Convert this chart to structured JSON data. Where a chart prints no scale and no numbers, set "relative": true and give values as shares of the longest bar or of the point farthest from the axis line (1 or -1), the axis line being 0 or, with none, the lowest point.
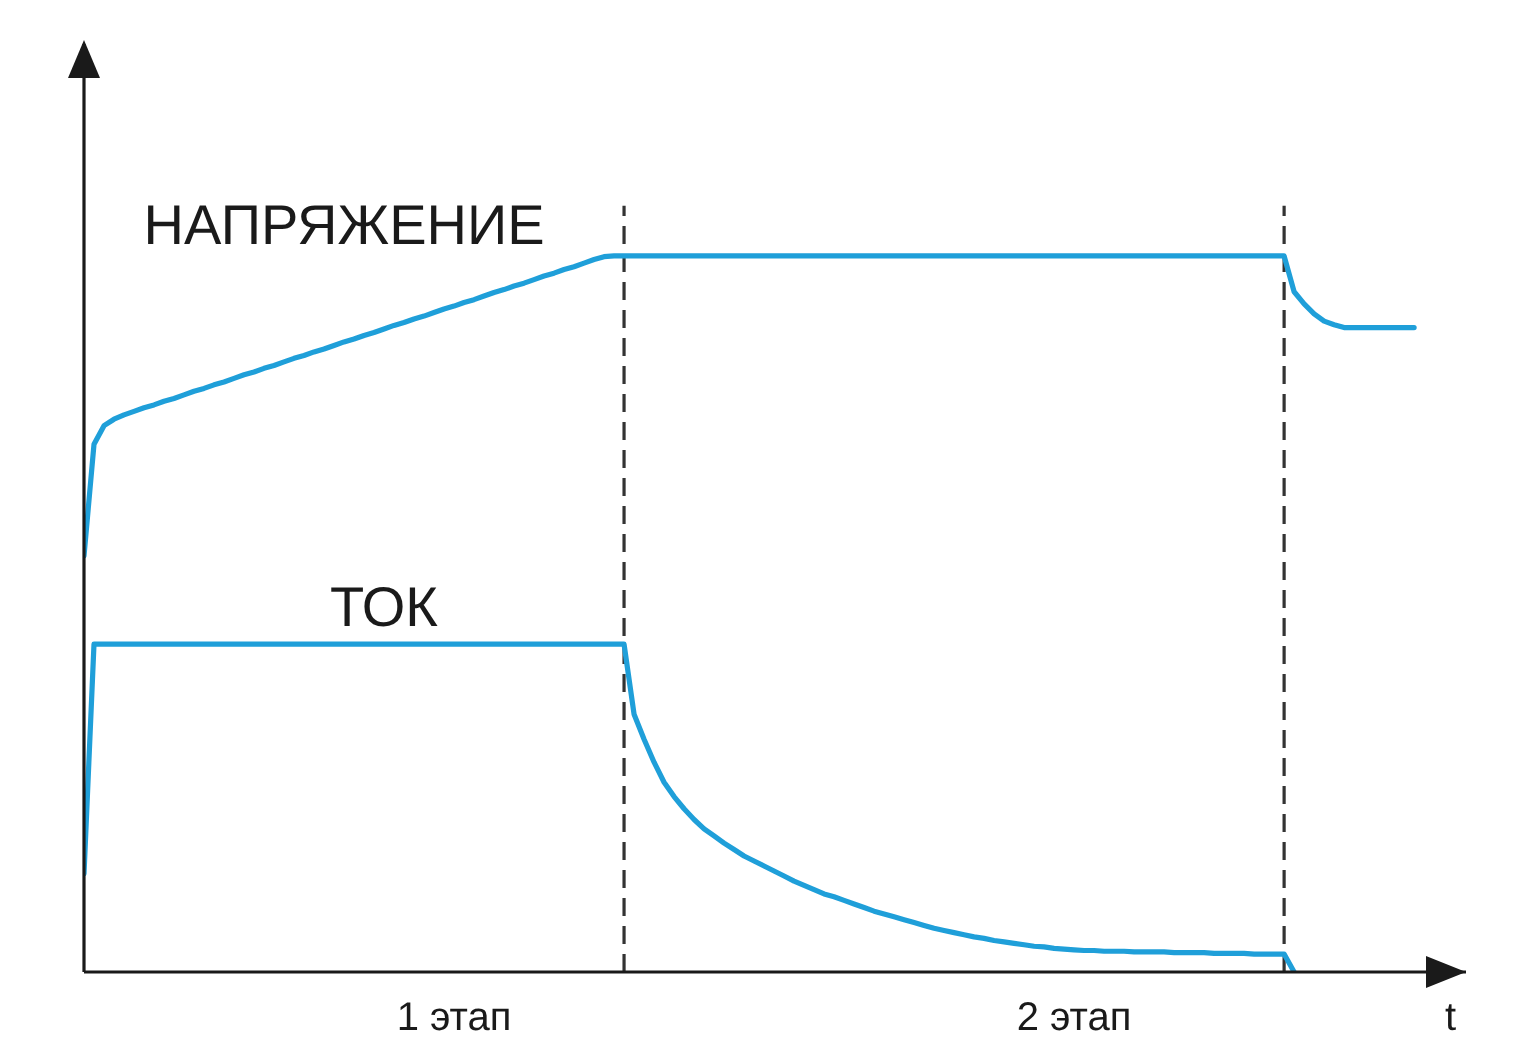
{
  "chart_data": {
    "type": "line",
    "relative": true,
    "xlabel": "t",
    "marker": "none",
    "categories": [
      null,
      null,
      null,
      null,
      null,
      null,
      null,
      null,
      null,
      null,
      null,
      null,
      null,
      null,
      null,
      null,
      null,
      null,
      null,
      null,
      null,
      null,
      null,
      null,
      null,
      null,
      null,
      null,
      null,
      null,
      null,
      null,
      null,
      null,
      null,
      null,
      null,
      "1 этап",
      null,
      null,
      null,
      null,
      null,
      null,
      null,
      null,
      null,
      null,
      null,
      null,
      null,
      null,
      null,
      null,
      null,
      null,
      null,
      null,
      null,
      null,
      null,
      null,
      null,
      null,
      null,
      null,
      null,
      null,
      null,
      null,
      null,
      null,
      null,
      null,
      null,
      null,
      null,
      null,
      null,
      null,
      null,
      null,
      null,
      null,
      null,
      null,
      null,
      null,
      null,
      null,
      null,
      null,
      null,
      null,
      null,
      null,
      null,
      null,
      null,
      "2 этап",
      null,
      null,
      null,
      null,
      null,
      null,
      null,
      null,
      null,
      null,
      null,
      null,
      null,
      null,
      null,
      null,
      null,
      null,
      null,
      null,
      null,
      null,
      null,
      null,
      null,
      null,
      null,
      null,
      null,
      null,
      null,
      null,
      null,
      null
    ],
    "series": [
      {
        "name": "НАПРЯЖЕНИЕ",
        "color": "#1f9fd9",
        "values": [
          0.581,
          0.737,
          0.763,
          0.772,
          0.778,
          0.783,
          0.788,
          0.792,
          0.797,
          0.801,
          0.806,
          0.811,
          0.815,
          0.82,
          0.824,
          0.829,
          0.834,
          0.838,
          0.843,
          0.847,
          0.852,
          0.857,
          0.861,
          0.866,
          0.87,
          0.875,
          0.88,
          0.884,
          0.889,
          0.893,
          0.898,
          0.903,
          0.907,
          0.912,
          0.916,
          0.921,
          0.926,
          0.93,
          0.935,
          0.939,
          0.944,
          0.949,
          0.953,
          0.958,
          0.962,
          0.967,
          0.972,
          0.976,
          0.981,
          0.985,
          0.99,
          0.995,
          0.999,
          1,
          1,
          1,
          1,
          1,
          1,
          1,
          1,
          1,
          1,
          1,
          1,
          1,
          1,
          1,
          1,
          1,
          1,
          1,
          1,
          1,
          1,
          1,
          1,
          1,
          1,
          1,
          1,
          1,
          1,
          1,
          1,
          1,
          1,
          1,
          1,
          1,
          1,
          1,
          1,
          1,
          1,
          1,
          1,
          1,
          1,
          1,
          1,
          1,
          1,
          1,
          1,
          1,
          1,
          1,
          1,
          1,
          1,
          1,
          1,
          1,
          1,
          1,
          1,
          1,
          1,
          1,
          1,
          0.95,
          0.933,
          0.919,
          0.909,
          0.904,
          0.9,
          0.9,
          0.9,
          0.9,
          0.9,
          0.9,
          0.9,
          0.9
        ]
      },
      {
        "name": "ТОК",
        "color": "#1f9fd9",
        "values": [
          0.137,
          0.458,
          0.458,
          0.458,
          0.458,
          0.458,
          0.458,
          0.458,
          0.458,
          0.458,
          0.458,
          0.458,
          0.458,
          0.458,
          0.458,
          0.458,
          0.458,
          0.458,
          0.458,
          0.458,
          0.458,
          0.458,
          0.458,
          0.458,
          0.458,
          0.458,
          0.458,
          0.458,
          0.458,
          0.458,
          0.458,
          0.458,
          0.458,
          0.458,
          0.458,
          0.458,
          0.458,
          0.458,
          0.458,
          0.458,
          0.458,
          0.458,
          0.458,
          0.458,
          0.458,
          0.458,
          0.458,
          0.458,
          0.458,
          0.458,
          0.458,
          0.458,
          0.458,
          0.458,
          0.458,
          0.36,
          0.325,
          0.293,
          0.265,
          0.245,
          0.228,
          0.213,
          0.2,
          0.19,
          0.18,
          0.171,
          0.162,
          0.155,
          0.148,
          0.141,
          0.134,
          0.127,
          0.121,
          0.115,
          0.109,
          0.105,
          0.1,
          0.095,
          0.09,
          0.085,
          0.081,
          0.077,
          0.073,
          0.069,
          0.065,
          0.061,
          0.058,
          0.055,
          0.052,
          0.049,
          0.047,
          0.044,
          0.042,
          0.04,
          0.038,
          0.036,
          0.035,
          0.033,
          0.032,
          0.031,
          0.03,
          0.03,
          0.029,
          0.029,
          0.029,
          0.028,
          0.028,
          0.028,
          0.028,
          0.027,
          0.027,
          0.027,
          0.027,
          0.026,
          0.026,
          0.026,
          0.026,
          0.025,
          0.025,
          0.025,
          0.025,
          0,
          null,
          null,
          null,
          null,
          null,
          null,
          null,
          null,
          null,
          null,
          null,
          null
        ]
      }
    ]
  }
}
